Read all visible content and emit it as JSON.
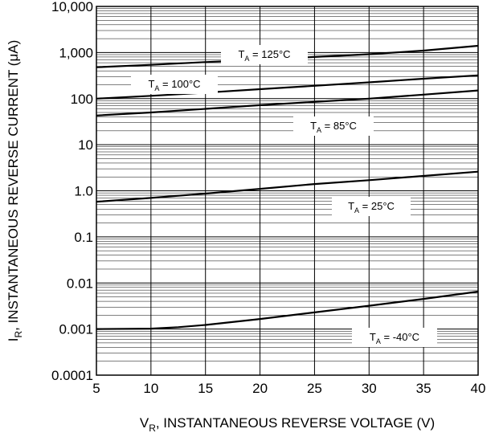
{
  "chart_data": {
    "type": "line",
    "y_scale": "log",
    "grid": true,
    "xlabel": {
      "main": "V",
      "sub": "R",
      "rest": ", INSTANTANEOUS REVERSE VOLTAGE (V)"
    },
    "ylabel": {
      "main": "I",
      "sub": "R",
      "rest": ", INSTANTANEOUS REVERSE CURRENT (μA)"
    },
    "xlim": [
      5,
      40
    ],
    "ylim": [
      0.0001,
      10000
    ],
    "x_ticks": [
      "5",
      "10",
      "15",
      "20",
      "25",
      "30",
      "35",
      "40"
    ],
    "y_ticks": [
      "0.0001",
      "0.001",
      "0.01",
      "0.1",
      "1.0",
      "10",
      "100",
      "1,000",
      "10,000"
    ],
    "series": [
      {
        "name": "T_A = 125°C",
        "label": {
          "main": "T",
          "sub": "A",
          "rest": " = 125°C"
        },
        "x": [
          5,
          10,
          15,
          20,
          25,
          30,
          35,
          40
        ],
        "y": [
          480,
          540,
          620,
          700,
          800,
          920,
          1100,
          1400
        ]
      },
      {
        "name": "T_A = 100°C",
        "label": {
          "main": "T",
          "sub": "A",
          "rest": " = 100°C"
        },
        "x": [
          5,
          10,
          15,
          20,
          25,
          30,
          35,
          40
        ],
        "y": [
          100,
          115,
          135,
          160,
          190,
          225,
          270,
          320
        ]
      },
      {
        "name": "T_A = 85°C",
        "label": {
          "main": "T",
          "sub": "A",
          "rest": " = 85°C"
        },
        "x": [
          5,
          10,
          15,
          20,
          25,
          30,
          35,
          40
        ],
        "y": [
          43,
          50,
          60,
          72,
          85,
          100,
          122,
          150
        ]
      },
      {
        "name": "T_A = 25°C",
        "label": {
          "main": "T",
          "sub": "A",
          "rest": " = 25°C"
        },
        "x": [
          5,
          10,
          15,
          20,
          25,
          30,
          35,
          40
        ],
        "y": [
          0.58,
          0.7,
          0.87,
          1.1,
          1.4,
          1.7,
          2.1,
          2.6
        ]
      },
      {
        "name": "T_A = -40°C",
        "label": {
          "main": "T",
          "sub": "A",
          "rest": " = -40°C"
        },
        "x": [
          5,
          10,
          12.5,
          15,
          20,
          25,
          30,
          35,
          40
        ],
        "y": [
          0.001,
          0.00102,
          0.0011,
          0.00123,
          0.00165,
          0.0023,
          0.0032,
          0.0045,
          0.0065
        ]
      }
    ]
  }
}
